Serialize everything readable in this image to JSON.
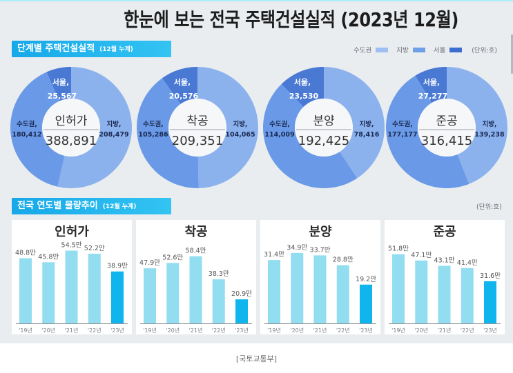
{
  "page": {
    "title": "한눈에 보는 전국 주택건설실적 (2023년 12월)",
    "caption": "[국토교통부]"
  },
  "stage_section": {
    "title": "단계별 주택건설실적",
    "subtitle": "(12월 누계)",
    "legend": [
      {
        "label": "수도권",
        "color": "#9dc0f1"
      },
      {
        "label": "지방",
        "color": "#6f9fe6"
      },
      {
        "label": "서울",
        "color": "#3d6ecf"
      }
    ],
    "unit": "(단위:호)"
  },
  "trend_section": {
    "title": "전국 연도별 물량추이",
    "subtitle": "(12월 누계)",
    "unit": "(단위:호)"
  },
  "colors": {
    "accent": "#1fb3ec",
    "region_local": "#8cb2ee",
    "region_capital": "#6a9ae7",
    "region_seoul": "#4a79d4",
    "donut_hole": "#f6f7f9",
    "bar": "#93ddf1",
    "bar_highlight": "#10b5ee"
  },
  "chart_data": [
    {
      "type": "pie",
      "variant": "donut",
      "title": "인허가",
      "total": 388891,
      "total_label": "388,891",
      "slices": [
        {
          "name": "지방",
          "value": 208479,
          "label": "지방,",
          "value_label": "208,479"
        },
        {
          "name": "수도권",
          "value": 180412,
          "label": "수도권,",
          "value_label": "180,412"
        },
        {
          "name": "서울",
          "value": 25567,
          "label": "서울,",
          "value_label": "25,567",
          "part_of": "수도권"
        }
      ]
    },
    {
      "type": "pie",
      "variant": "donut",
      "title": "착공",
      "total": 209351,
      "total_label": "209,351",
      "slices": [
        {
          "name": "지방",
          "value": 104065,
          "label": "지방,",
          "value_label": "104,065"
        },
        {
          "name": "수도권",
          "value": 105286,
          "label": "수도권,",
          "value_label": "105,286"
        },
        {
          "name": "서울",
          "value": 20576,
          "label": "서울,",
          "value_label": "20,576",
          "part_of": "수도권"
        }
      ]
    },
    {
      "type": "pie",
      "variant": "donut",
      "title": "분양",
      "total": 192425,
      "total_label": "192,425",
      "slices": [
        {
          "name": "지방",
          "value": 78416,
          "label": "지방,",
          "value_label": "78,416"
        },
        {
          "name": "수도권",
          "value": 114009,
          "label": "수도권,",
          "value_label": "114,009"
        },
        {
          "name": "서울",
          "value": 23530,
          "label": "서울,",
          "value_label": "23,530",
          "part_of": "수도권"
        }
      ]
    },
    {
      "type": "pie",
      "variant": "donut",
      "title": "준공",
      "total": 316415,
      "total_label": "316,415",
      "slices": [
        {
          "name": "지방",
          "value": 139238,
          "label": "지방,",
          "value_label": "139,238"
        },
        {
          "name": "수도권",
          "value": 177177,
          "label": "수도권,",
          "value_label": "177,177"
        },
        {
          "name": "서울",
          "value": 27277,
          "label": "서울,",
          "value_label": "27,277",
          "part_of": "수도권"
        }
      ]
    },
    {
      "type": "bar",
      "title": "인허가",
      "categories": [
        "'19년",
        "'20년",
        "'21년",
        "'22년",
        "'23년"
      ],
      "values": [
        48.8,
        45.8,
        54.5,
        52.2,
        38.9
      ],
      "value_labels": [
        "48.8만",
        "45.8만",
        "54.5만",
        "52.2만",
        "38.9만"
      ],
      "value_suffix": "만",
      "ylim": [
        0,
        62
      ],
      "highlight_index": 4
    },
    {
      "type": "bar",
      "title": "착공",
      "categories": [
        "'19년",
        "'20년",
        "'21년",
        "'22년",
        "'23년"
      ],
      "values": [
        47.9,
        52.6,
        58.4,
        38.3,
        20.9
      ],
      "value_labels": [
        "47.9만",
        "52.6만",
        "58.4만",
        "38.3만",
        "20.9만"
      ],
      "value_suffix": "만",
      "ylim": [
        0,
        72
      ],
      "highlight_index": 4
    },
    {
      "type": "bar",
      "title": "분양",
      "categories": [
        "'19년",
        "'20년",
        "'21년",
        "'22년",
        "'23년"
      ],
      "values": [
        31.4,
        34.9,
        33.7,
        28.8,
        19.2
      ],
      "value_labels": [
        "31.4만",
        "34.9만",
        "33.7만",
        "28.8만",
        "19.2만"
      ],
      "value_suffix": "만",
      "ylim": [
        0,
        41
      ],
      "highlight_index": 4
    },
    {
      "type": "bar",
      "title": "준공",
      "categories": [
        "'19년",
        "'20년",
        "'21년",
        "'22년",
        "'23년"
      ],
      "values": [
        51.8,
        47.1,
        43.1,
        41.4,
        31.6
      ],
      "value_labels": [
        "51.8만",
        "47.1만",
        "43.1만",
        "41.4만",
        "31.6만"
      ],
      "value_suffix": "만",
      "ylim": [
        0,
        62
      ],
      "highlight_index": 4
    }
  ]
}
